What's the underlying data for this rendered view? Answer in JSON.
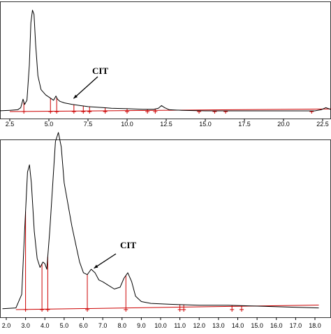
{
  "chart_data": [
    {
      "type": "line",
      "title": "",
      "xlabel": "",
      "ylabel": "",
      "xlim": [
        1.8,
        23.5
      ],
      "ylim": [
        0,
        100
      ],
      "x_ticks": [
        2.5,
        5.0,
        7.5,
        10.0,
        12.5,
        15.0,
        17.5,
        20.0,
        22.5
      ],
      "x_tick_labels": [
        "2.5",
        "5.0",
        "7.5",
        "10.0",
        "12.5",
        "15.0",
        "17.5",
        "20.0",
        "22.5"
      ],
      "grid": false,
      "colors": {
        "trace": "#000000",
        "baseline": "#cc0000"
      },
      "series": [
        {
          "x": [
            1.8,
            2.5,
            3.0,
            3.2,
            3.35,
            3.45,
            3.6,
            3.75,
            3.85,
            3.95,
            4.05,
            4.15,
            4.3,
            4.5,
            4.8,
            5.1,
            5.3,
            5.45,
            5.55,
            5.7,
            6.0,
            6.5,
            7.0,
            7.5,
            8.0,
            8.5,
            9.0,
            10.0,
            11.0,
            11.7,
            12.0,
            12.2,
            12.4,
            12.7,
            13.5,
            15.0,
            17.5,
            20.0,
            22.0,
            22.4,
            22.7,
            23.0,
            23.5
          ],
          "y": [
            2.0,
            2.5,
            3.0,
            5.0,
            13.0,
            8.0,
            12.0,
            45.0,
            85.0,
            97.0,
            93.0,
            65.0,
            35.0,
            22.0,
            17.0,
            14.0,
            12.0,
            16.0,
            13.0,
            11.0,
            9.5,
            8.0,
            7.0,
            6.0,
            5.5,
            5.0,
            4.5,
            4.0,
            3.5,
            3.5,
            4.5,
            7.0,
            5.0,
            3.0,
            2.5,
            2.0,
            2.0,
            2.0,
            2.0,
            3.0,
            5.0,
            3.5,
            3.0
          ]
        }
      ],
      "integration_marks": [
        3.4,
        5.1,
        5.5,
        6.6,
        7.2,
        7.6,
        8.6,
        10.0,
        11.3,
        11.8,
        14.6,
        15.6,
        16.3,
        21.8
      ],
      "annotations": [
        {
          "text": "CIT",
          "target_x": 6.4,
          "target_y": 11.0
        }
      ]
    },
    {
      "type": "line",
      "title": "",
      "xlabel": "",
      "ylabel": "",
      "xlim": [
        1.8,
        18.2
      ],
      "ylim": [
        0,
        100
      ],
      "x_ticks": [
        2.0,
        3.0,
        4.0,
        5.0,
        6.0,
        7.0,
        8.0,
        9.0,
        10.0,
        11.0,
        12.0,
        13.0,
        14.0,
        15.0,
        16.0,
        17.0,
        18.0
      ],
      "x_tick_labels": [
        "2.0",
        "3.0",
        "4.0",
        "5.0",
        "6.0",
        "7.0",
        "8.0",
        "9.0",
        "10.0",
        "11.0",
        "12.0",
        "13.0",
        "14.0",
        "15.0",
        "16.0",
        "17.0",
        "18.0"
      ],
      "grid": false,
      "colors": {
        "trace": "#000000",
        "baseline": "#cc0000"
      },
      "series": [
        {
          "x": [
            1.8,
            2.5,
            2.8,
            2.95,
            3.1,
            3.2,
            3.3,
            3.45,
            3.6,
            3.75,
            3.9,
            4.0,
            4.1,
            4.25,
            4.4,
            4.55,
            4.7,
            4.85,
            5.0,
            5.2,
            5.4,
            5.6,
            5.8,
            6.0,
            6.2,
            6.4,
            6.6,
            6.8,
            7.0,
            7.3,
            7.6,
            7.9,
            8.1,
            8.3,
            8.5,
            8.7,
            9.0,
            9.5,
            10.5,
            12.0,
            13.5,
            15.0,
            16.5,
            18.2
          ],
          "y": [
            2.0,
            2.5,
            10.0,
            45.0,
            78.0,
            82.0,
            72.0,
            45.0,
            30.0,
            25.0,
            28.0,
            27.0,
            24.0,
            45.0,
            70.0,
            95.0,
            100.0,
            92.0,
            72.0,
            60.0,
            48.0,
            38.0,
            28.0,
            22.0,
            21.0,
            24.0,
            22.0,
            18.0,
            17.0,
            15.0,
            13.0,
            14.0,
            19.0,
            22.0,
            17.0,
            9.0,
            6.0,
            5.0,
            4.5,
            4.0,
            4.0,
            3.5,
            3.0,
            2.5
          ]
        }
      ],
      "integration_marks": [
        3.0,
        3.85,
        4.15,
        6.2,
        8.2,
        11.0,
        11.2,
        13.7,
        14.2
      ],
      "annotations": [
        {
          "text": "CIT",
          "target_x": 6.4,
          "target_y": 23.0
        }
      ]
    }
  ]
}
